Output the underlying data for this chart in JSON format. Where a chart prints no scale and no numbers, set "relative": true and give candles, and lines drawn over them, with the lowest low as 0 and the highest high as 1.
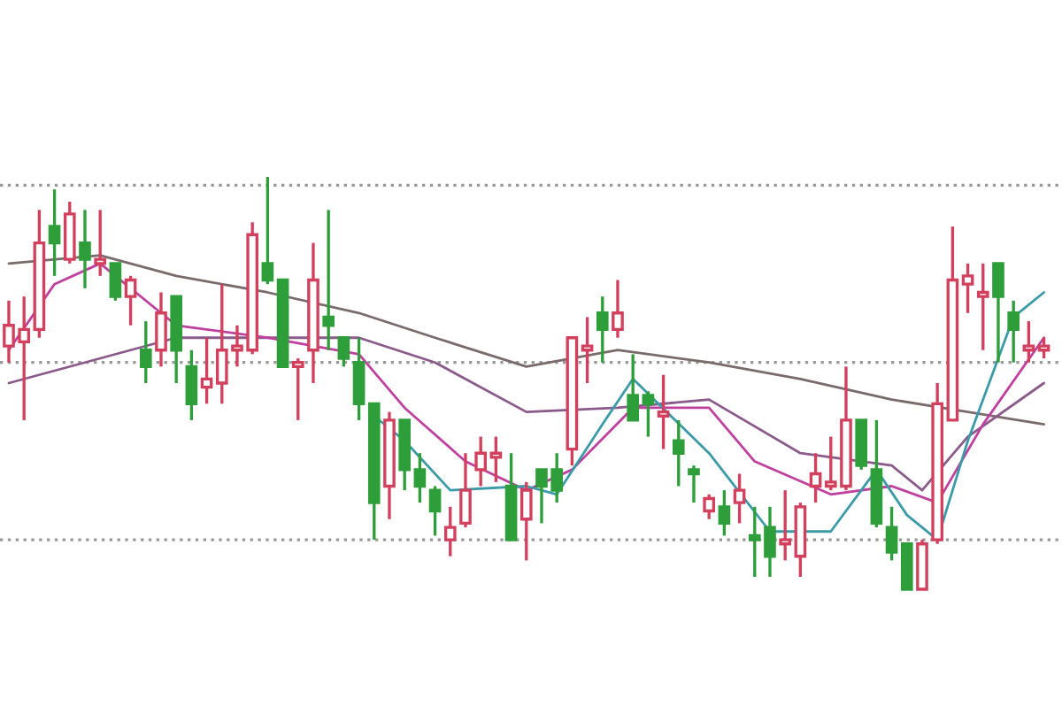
{
  "chart_data": {
    "type": "candlestick",
    "relative": true,
    "categories": [
      null,
      null,
      null,
      null,
      null,
      null,
      null,
      null,
      null,
      null,
      null,
      null,
      null,
      null,
      null,
      null,
      null,
      null,
      null,
      null,
      null,
      null,
      null,
      null,
      null,
      null,
      null,
      null,
      null,
      null,
      null,
      null,
      null,
      null,
      null,
      null,
      null,
      null,
      null,
      null,
      null,
      null,
      null,
      null,
      null,
      null,
      null,
      null,
      null,
      null,
      null,
      null,
      null,
      null,
      null,
      null,
      null,
      null,
      null,
      null,
      null,
      null,
      null,
      null,
      null,
      null,
      null,
      null,
      null
    ],
    "ohlc": [
      [
        0.59,
        0.7,
        0.55,
        0.64
      ],
      [
        0.6,
        0.71,
        0.41,
        0.63
      ],
      [
        0.63,
        0.92,
        0.61,
        0.84
      ],
      [
        0.88,
        0.97,
        0.76,
        0.84
      ],
      [
        0.8,
        0.94,
        0.79,
        0.91
      ],
      [
        0.84,
        0.92,
        0.73,
        0.8
      ],
      [
        0.79,
        0.92,
        0.76,
        0.8
      ],
      [
        0.79,
        0.79,
        0.7,
        0.71
      ],
      [
        0.71,
        0.76,
        0.64,
        0.75
      ],
      [
        0.58,
        0.65,
        0.5,
        0.54
      ],
      [
        0.58,
        0.72,
        0.54,
        0.67
      ],
      [
        0.71,
        0.71,
        0.5,
        0.58
      ],
      [
        0.54,
        0.58,
        0.41,
        0.45
      ],
      [
        0.49,
        0.61,
        0.45,
        0.51
      ],
      [
        0.5,
        0.74,
        0.45,
        0.58
      ],
      [
        0.58,
        0.64,
        0.54,
        0.59
      ],
      [
        0.58,
        0.89,
        0.57,
        0.86
      ],
      [
        0.79,
        1.0,
        0.74,
        0.75
      ],
      [
        0.75,
        0.75,
        0.54,
        0.54
      ],
      [
        0.54,
        0.56,
        0.41,
        0.55
      ],
      [
        0.58,
        0.84,
        0.5,
        0.75
      ],
      [
        0.66,
        0.92,
        0.58,
        0.64
      ],
      [
        0.61,
        0.61,
        0.54,
        0.56
      ],
      [
        0.55,
        0.61,
        0.41,
        0.45
      ],
      [
        0.45,
        0.45,
        0.12,
        0.21
      ],
      [
        0.25,
        0.43,
        0.17,
        0.41
      ],
      [
        0.41,
        0.41,
        0.24,
        0.29
      ],
      [
        0.29,
        0.33,
        0.21,
        0.25
      ],
      [
        0.24,
        0.25,
        0.13,
        0.19
      ],
      [
        0.12,
        0.2,
        0.08,
        0.15
      ],
      [
        0.16,
        0.33,
        0.15,
        0.24
      ],
      [
        0.29,
        0.37,
        0.25,
        0.33
      ],
      [
        0.32,
        0.37,
        0.26,
        0.33
      ],
      [
        0.25,
        0.33,
        0.12,
        0.12
      ],
      [
        0.17,
        0.26,
        0.07,
        0.24
      ],
      [
        0.29,
        0.29,
        0.16,
        0.25
      ],
      [
        0.29,
        0.33,
        0.21,
        0.24
      ],
      [
        0.34,
        0.61,
        0.3,
        0.61
      ],
      [
        0.58,
        0.66,
        0.5,
        0.59
      ],
      [
        0.67,
        0.71,
        0.55,
        0.63
      ],
      [
        0.63,
        0.75,
        0.61,
        0.67
      ],
      [
        0.47,
        0.57,
        0.41,
        0.41
      ],
      [
        0.47,
        0.48,
        0.37,
        0.45
      ],
      [
        0.42,
        0.52,
        0.34,
        0.43
      ],
      [
        0.36,
        0.41,
        0.25,
        0.33
      ],
      [
        0.29,
        0.3,
        0.21,
        0.28
      ],
      [
        0.19,
        0.23,
        0.17,
        0.22
      ],
      [
        0.2,
        0.24,
        0.13,
        0.16
      ],
      [
        0.21,
        0.28,
        0.16,
        0.24
      ],
      [
        0.13,
        0.2,
        0.03,
        0.12
      ],
      [
        0.15,
        0.2,
        0.03,
        0.08
      ],
      [
        0.11,
        0.24,
        0.07,
        0.12
      ],
      [
        0.08,
        0.21,
        0.03,
        0.2
      ],
      [
        0.25,
        0.33,
        0.21,
        0.28
      ],
      [
        0.25,
        0.37,
        0.24,
        0.26
      ],
      [
        0.25,
        0.54,
        0.24,
        0.41
      ],
      [
        0.41,
        0.41,
        0.29,
        0.3
      ],
      [
        0.29,
        0.41,
        0.15,
        0.16
      ],
      [
        0.15,
        0.2,
        0.07,
        0.09
      ],
      [
        0.11,
        0.11,
        0.0,
        0.0
      ],
      [
        0.0,
        0.12,
        0.0,
        0.11
      ],
      [
        0.12,
        0.5,
        0.11,
        0.45
      ],
      [
        0.41,
        0.88,
        0.41,
        0.75
      ],
      [
        0.74,
        0.79,
        0.67,
        0.76
      ],
      [
        0.71,
        0.79,
        0.58,
        0.72
      ],
      [
        0.79,
        0.79,
        0.55,
        0.71
      ],
      [
        0.67,
        0.7,
        0.55,
        0.63
      ],
      [
        0.58,
        0.65,
        0.55,
        0.59
      ],
      [
        0.58,
        0.61,
        0.56,
        0.59
      ]
    ],
    "series": [
      {
        "type": "line",
        "color": "#7a6a6a",
        "values": [
          0.79,
          null,
          null,
          null,
          null,
          null,
          0.81,
          null,
          null,
          null,
          null,
          0.76,
          null,
          null,
          null,
          null,
          null,
          0.72,
          null,
          null,
          null,
          null,
          null,
          0.67,
          null,
          null,
          null,
          null,
          0.61,
          null,
          null,
          null,
          null,
          null,
          0.54,
          null,
          null,
          null,
          null,
          null,
          0.58,
          null,
          null,
          null,
          null,
          null,
          0.55,
          null,
          null,
          null,
          null,
          null,
          0.51,
          null,
          null,
          null,
          null,
          null,
          0.46,
          null,
          null,
          null,
          null,
          0.43,
          null,
          null,
          null,
          null,
          0.4
        ]
      },
      {
        "type": "line",
        "color": "#8a5a8a",
        "values": [
          0.5,
          null,
          null,
          null,
          null,
          null,
          null,
          null,
          null,
          null,
          null,
          0.61,
          null,
          null,
          null,
          null,
          null,
          0.61,
          null,
          null,
          null,
          null,
          null,
          0.61,
          null,
          null,
          null,
          null,
          0.55,
          null,
          null,
          null,
          null,
          null,
          0.43,
          null,
          null,
          null,
          null,
          null,
          0.44,
          null,
          null,
          null,
          null,
          null,
          0.46,
          null,
          null,
          null,
          null,
          null,
          0.33,
          null,
          null,
          null,
          null,
          null,
          0.3,
          null,
          0.24,
          null,
          null,
          0.37,
          null,
          null,
          null,
          null,
          0.5
        ]
      },
      {
        "type": "line",
        "color": "#c040a0",
        "values": [
          0.58,
          null,
          null,
          0.74,
          null,
          null,
          0.79,
          null,
          null,
          null,
          null,
          0.64,
          null,
          null,
          null,
          null,
          null,
          0.61,
          null,
          null,
          null,
          null,
          null,
          0.57,
          null,
          null,
          0.44,
          null,
          null,
          null,
          0.31,
          null,
          null,
          null,
          0.24,
          null,
          null,
          0.29,
          null,
          null,
          null,
          0.44,
          null,
          null,
          null,
          null,
          0.44,
          null,
          null,
          0.31,
          null,
          null,
          null,
          null,
          0.23,
          null,
          null,
          null,
          0.25,
          null,
          null,
          0.21,
          null,
          null,
          0.4,
          null,
          null,
          null,
          0.61
        ]
      },
      {
        "type": "line",
        "color": "#3a9aa8",
        "values": [
          null,
          null,
          null,
          null,
          null,
          null,
          null,
          null,
          null,
          null,
          null,
          null,
          null,
          null,
          null,
          null,
          null,
          null,
          null,
          null,
          null,
          null,
          null,
          null,
          0.42,
          null,
          0.36,
          null,
          null,
          0.24,
          null,
          null,
          null,
          null,
          0.25,
          null,
          0.23,
          null,
          null,
          0.4,
          null,
          0.51,
          null,
          null,
          null,
          null,
          0.33,
          null,
          null,
          null,
          0.14,
          null,
          null,
          null,
          0.14,
          null,
          null,
          0.29,
          null,
          0.18,
          null,
          0.12,
          null,
          0.36,
          null,
          null,
          0.66,
          null,
          0.72
        ]
      }
    ],
    "ref_lines": [
      {
        "axis": "y",
        "value": 0.98,
        "color": "#999999",
        "line_style": "dotted"
      },
      {
        "axis": "y",
        "value": 0.55,
        "color": "#999999",
        "line_style": "dotted"
      },
      {
        "axis": "y",
        "value": 0.12,
        "color": "#999999",
        "line_style": "dotted"
      }
    ]
  }
}
